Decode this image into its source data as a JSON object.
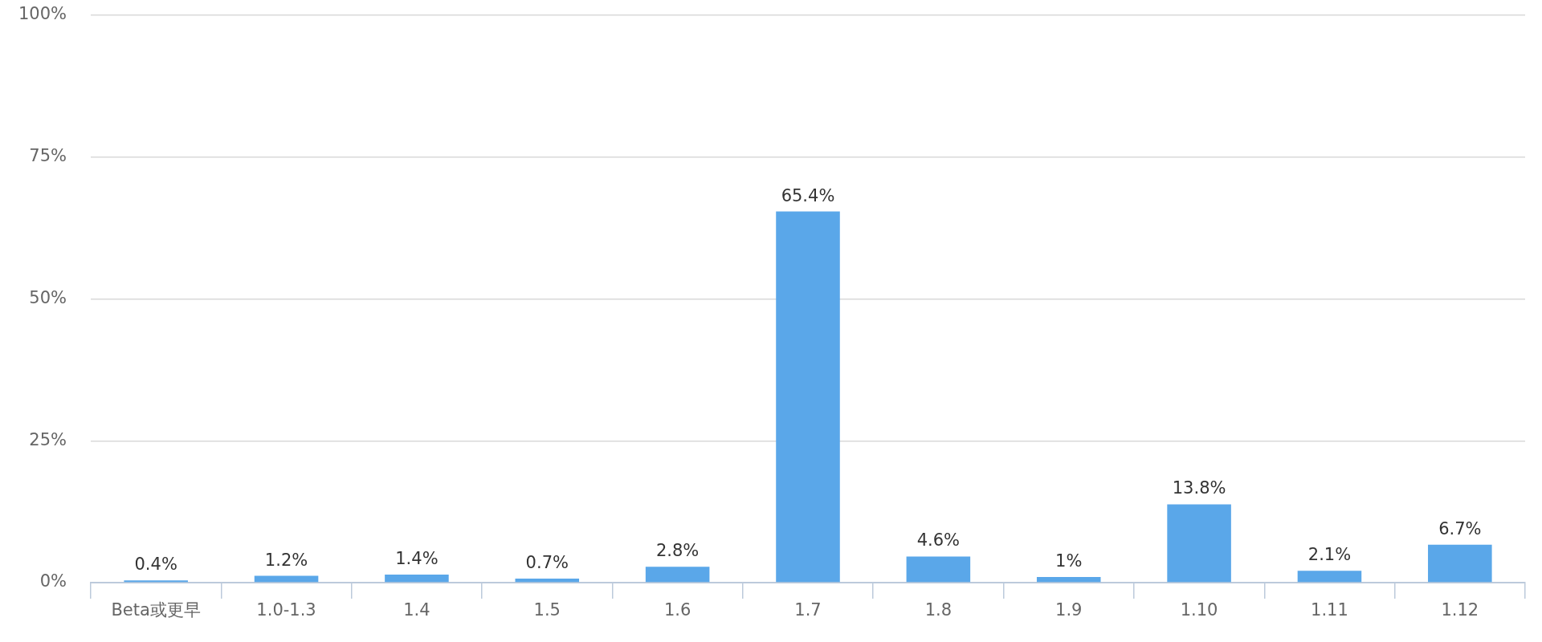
{
  "chart_data": {
    "type": "bar",
    "categories": [
      "Beta或更早",
      "1.0-1.3",
      "1.4",
      "1.5",
      "1.6",
      "1.7",
      "1.8",
      "1.9",
      "1.10",
      "1.11",
      "1.12"
    ],
    "values": [
      0.4,
      1.2,
      1.4,
      0.7,
      2.8,
      65.4,
      4.6,
      1,
      13.8,
      2.1,
      6.7
    ],
    "value_labels": [
      "0.4%",
      "1.2%",
      "1.4%",
      "0.7%",
      "2.8%",
      "65.4%",
      "4.6%",
      "1%",
      "13.8%",
      "2.1%",
      "6.7%"
    ],
    "color": "#5aa7e9",
    "ylim": [
      0,
      100
    ],
    "yticks": [
      {
        "value": 0,
        "label": "0%"
      },
      {
        "value": 25,
        "label": "25%"
      },
      {
        "value": 50,
        "label": "50%"
      },
      {
        "value": 75,
        "label": "75%"
      },
      {
        "value": 100,
        "label": "100%"
      }
    ],
    "grid": "y"
  }
}
